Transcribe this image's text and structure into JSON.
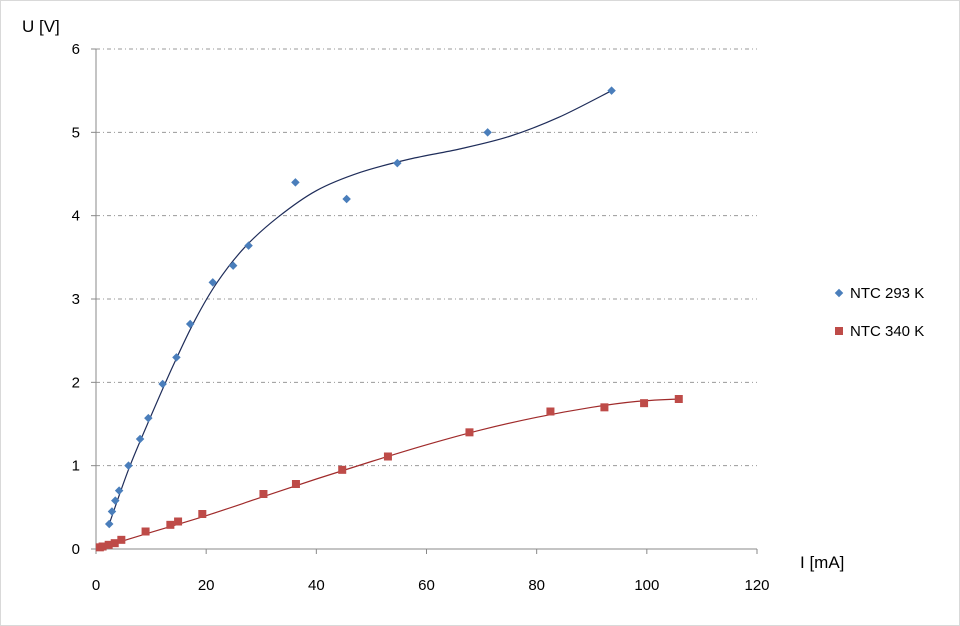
{
  "chart_data": {
    "type": "scatter",
    "title": "",
    "xlabel": "I [mA]",
    "ylabel": "U [V]",
    "xlim": [
      0,
      120
    ],
    "ylim": [
      0,
      6
    ],
    "xticks": [
      "0",
      "20",
      "40",
      "60",
      "80",
      "100",
      "120"
    ],
    "yticks": [
      "0",
      "1",
      "2",
      "3",
      "4",
      "5",
      "6"
    ],
    "grid": "horizontal dashed",
    "legend_position": "right",
    "series": [
      {
        "name": "NTC 293 K",
        "marker": "diamond",
        "color": "#4a7ebb",
        "trend_color": "#1f2d5a",
        "x": [
          2.4,
          2.9,
          3.5,
          4.2,
          5.9,
          8.0,
          9.5,
          12.1,
          14.6,
          17.1,
          21.2,
          24.9,
          27.7,
          36.2,
          45.5,
          54.7,
          71.1,
          93.6
        ],
        "y": [
          0.3,
          0.45,
          0.58,
          0.7,
          1.0,
          1.32,
          1.57,
          1.98,
          2.3,
          2.7,
          3.2,
          3.4,
          3.64,
          4.4,
          4.2,
          4.63,
          5.0,
          5.5
        ]
      },
      {
        "name": "NTC 340 K",
        "marker": "square",
        "color": "#be4b48",
        "trend_color": "#a02b2b",
        "x": [
          0.7,
          1.2,
          2.3,
          3.4,
          4.6,
          9.0,
          13.5,
          14.9,
          19.3,
          30.4,
          36.3,
          44.7,
          53.0,
          67.8,
          82.5,
          92.3,
          99.5,
          105.8
        ],
        "y": [
          0.02,
          0.03,
          0.05,
          0.07,
          0.11,
          0.21,
          0.29,
          0.33,
          0.42,
          0.66,
          0.78,
          0.95,
          1.11,
          1.4,
          1.65,
          1.7,
          1.75,
          1.8
        ]
      }
    ]
  }
}
